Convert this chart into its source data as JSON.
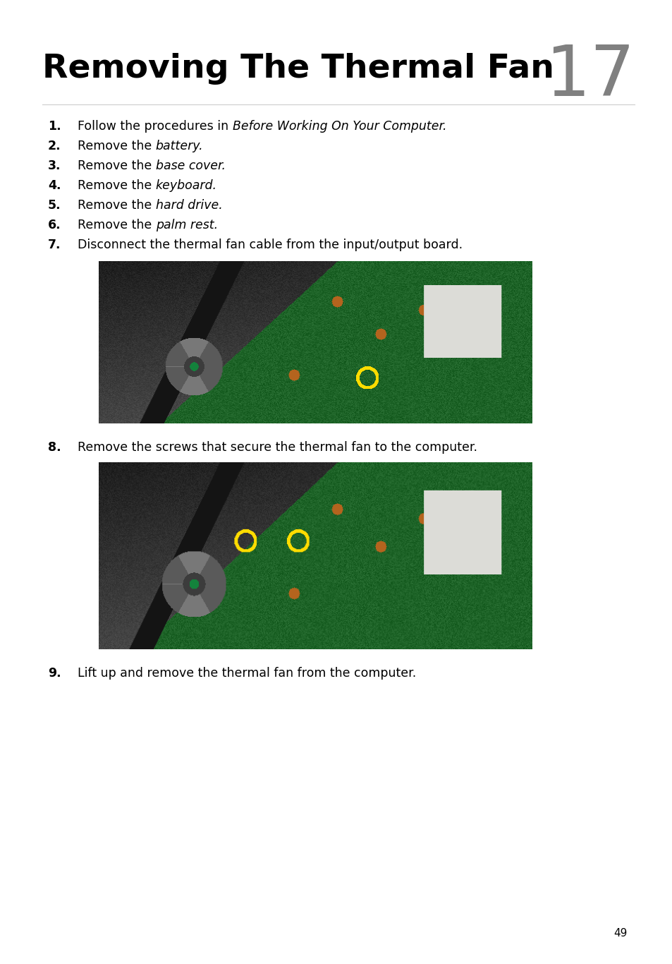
{
  "title": "Removing The Thermal Fan",
  "chapter_number": "17",
  "background_color": "#ffffff",
  "title_color": "#000000",
  "chapter_color": "#808080",
  "steps": [
    {
      "num": "1.",
      "text_plain": "Follow the procedures in ",
      "text_italic": "Before Working On Your Computer."
    },
    {
      "num": "2.",
      "text_plain": "Remove the ",
      "text_italic": "battery."
    },
    {
      "num": "3.",
      "text_plain": "Remove the ",
      "text_italic": "base cover."
    },
    {
      "num": "4.",
      "text_plain": "Remove the ",
      "text_italic": "keyboard."
    },
    {
      "num": "5.",
      "text_plain": "Remove the ",
      "text_italic": "hard drive."
    },
    {
      "num": "6.",
      "text_plain": "Remove the ",
      "text_italic": "palm rest."
    },
    {
      "num": "7.",
      "text_plain": "Disconnect the thermal fan cable from the input/output board.",
      "text_italic": ""
    },
    {
      "num": "8.",
      "text_plain": "Remove the screws that secure the thermal fan to the computer.",
      "text_italic": ""
    },
    {
      "num": "9.",
      "text_plain": "Lift up and remove the thermal fan from the computer.",
      "text_italic": ""
    }
  ],
  "page_number": "49",
  "step_font_size": 12.5,
  "title_font_size": 34,
  "chapter_font_size": 72
}
